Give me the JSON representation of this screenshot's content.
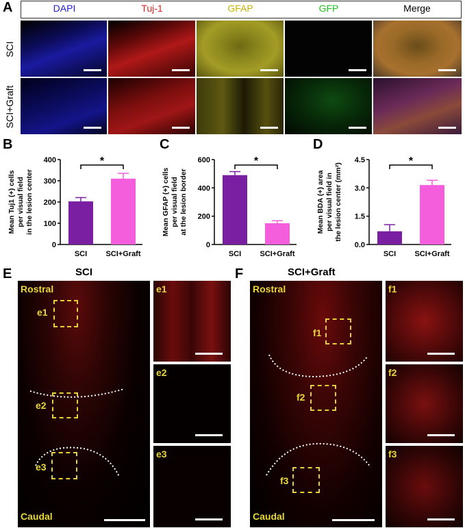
{
  "panels": {
    "A": "A",
    "B": "B",
    "C": "C",
    "D": "D",
    "E": "E",
    "F": "F"
  },
  "panelA": {
    "channels": [
      {
        "label": "DAPI",
        "color": "#2020d8"
      },
      {
        "label": "Tuj-1",
        "color": "#e02020"
      },
      {
        "label": "GFAP",
        "color": "#c8b400"
      },
      {
        "label": "GFP",
        "color": "#20c020"
      },
      {
        "label": "Merge",
        "color": "#000000"
      }
    ],
    "rows": [
      "SCI",
      "SCI+Graft"
    ]
  },
  "chart_data": [
    {
      "type": "bar",
      "categories": [
        "SCI",
        "SCI+Graft"
      ],
      "values": [
        203,
        310
      ],
      "errors": [
        18,
        25
      ],
      "colors": [
        "#7b1fa2",
        "#f45ddb"
      ],
      "ylabel": "Mean Tuj1 (+) cells per visual field in the lesion center",
      "ylabel_lines": [
        "Mean Tuj1 (+) cells",
        "per visual field",
        "in the lesion center"
      ],
      "ylim": [
        0,
        400
      ],
      "yticks": [
        "0",
        "100",
        "200",
        "300",
        "400"
      ],
      "significance": "*"
    },
    {
      "type": "bar",
      "categories": [
        "SCI",
        "SCI+Graft"
      ],
      "values": [
        490,
        150
      ],
      "errors": [
        25,
        18
      ],
      "colors": [
        "#7b1fa2",
        "#f45ddb"
      ],
      "ylabel": "Mean GFAP (+) cells per visual field at the lesion border",
      "ylabel_lines": [
        "Mean GFAP (+) cells",
        "per visual field",
        "at the lesion border"
      ],
      "ylim": [
        0,
        600
      ],
      "yticks": [
        "0",
        "200",
        "400",
        "600"
      ],
      "significance": "*"
    },
    {
      "type": "bar",
      "categories": [
        "SCI",
        "SCI+Graft"
      ],
      "values": [
        0.7,
        3.15
      ],
      "errors": [
        0.35,
        0.25
      ],
      "colors": [
        "#7b1fa2",
        "#f45ddb"
      ],
      "ylabel": "Mean BDA (+) area per visual field in the lesion center (mm²)",
      "ylabel_lines": [
        "Mean BDA (+) area",
        "per visual field in",
        "the lesion center (mm²)"
      ],
      "ylim": [
        0,
        4.5
      ],
      "yticks": [
        "0.0",
        "1.5",
        "3.0",
        "4.5"
      ],
      "significance": "*"
    }
  ],
  "panelE": {
    "title": "SCI",
    "rostral": "Rostral",
    "caudal": "Caudal",
    "boxes": [
      "e1",
      "e2",
      "e3"
    ]
  },
  "panelF": {
    "title": "SCI+Graft",
    "rostral": "Rostral",
    "caudal": "Caudal",
    "boxes": [
      "f1",
      "f2",
      "f3"
    ]
  }
}
